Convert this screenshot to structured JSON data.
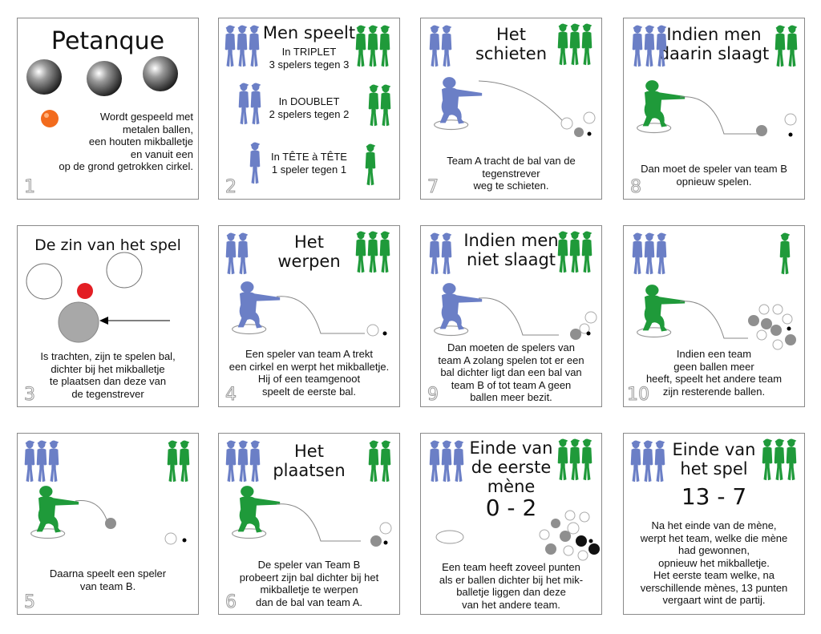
{
  "colors": {
    "team_a": "#6b7fc6",
    "team_b": "#1f9a3a",
    "jack_orange": "#f26b1d",
    "jack_red": "#e31e24",
    "ball_grey": "#8f8f8f",
    "ball_dark": "#333333"
  },
  "cards": [
    {
      "number": "1",
      "title": "Petanque",
      "text": "Wordt gespeeld met\nmetalen ballen,\neen houten mikballetje\nen vanuit een\nop de grond getrokken cirkel."
    },
    {
      "number": "2",
      "title": "Men speelt",
      "modes": [
        {
          "name": "In TRIPLET",
          "detail": "3 spelers tegen 3"
        },
        {
          "name": "In DOUBLET",
          "detail": "2 spelers tegen 2"
        },
        {
          "name": "In TÊTE à TÊTE",
          "detail": "1 speler tegen 1"
        }
      ]
    },
    {
      "number": "7",
      "title": "Het\nschieten",
      "text": "Team A tracht de bal van de\ntegenstrever\nweg te schieten."
    },
    {
      "number": "8",
      "title": "Indien men\ndaarin slaagt",
      "text": "Dan moet de speler van team B\nopnieuw spelen."
    },
    {
      "number": "3",
      "title": "De zin van het spel",
      "text": "Is trachten, zijn te spelen bal,\ndichter bij het mikballetje\nte plaatsen dan deze van\nde tegenstrever"
    },
    {
      "number": "4",
      "title": "Het\nwerpen",
      "text": "Een speler van team A trekt\neen cirkel en werpt het mikballetje.\nHij of een teamgenoot\nspeelt de eerste bal."
    },
    {
      "number": "9",
      "title": "Indien men\nniet slaagt",
      "text": "Dan moeten de spelers van\nteam A zolang spelen tot er een\nbal dichter ligt dan een bal van\nteam B of tot team A geen\nballen meer bezit."
    },
    {
      "number": "10",
      "title": "",
      "text": "Indien een team\ngeen ballen meer\nheeft, speelt het andere team\nzijn resterende ballen."
    },
    {
      "number": "5",
      "title": "",
      "text": "Daarna speelt een speler\nvan team B."
    },
    {
      "number": "6",
      "title": "Het\nplaatsen",
      "text": "De speler van Team B\nprobeert zijn bal dichter bij het\nmikballetje te werpen\ndan de bal van team A."
    },
    {
      "number": "",
      "title": "Einde van\nde eerste\nmène",
      "score": "0 - 2",
      "text": "Een team heeft zoveel punten\nals er ballen dichter bij het mik-\nballetje liggen dan deze\nvan het andere team."
    },
    {
      "number": "",
      "title": "Einde van\nhet spel",
      "score": "13 - 7",
      "text": "Na het einde van de mène,\nwerpt het team, welke die mène\nhad gewonnen,\nopnieuw het mikballetje.\nHet eerste team welke, na\nverschillende mènes, 13 punten\nvergaart wint de partij."
    }
  ]
}
